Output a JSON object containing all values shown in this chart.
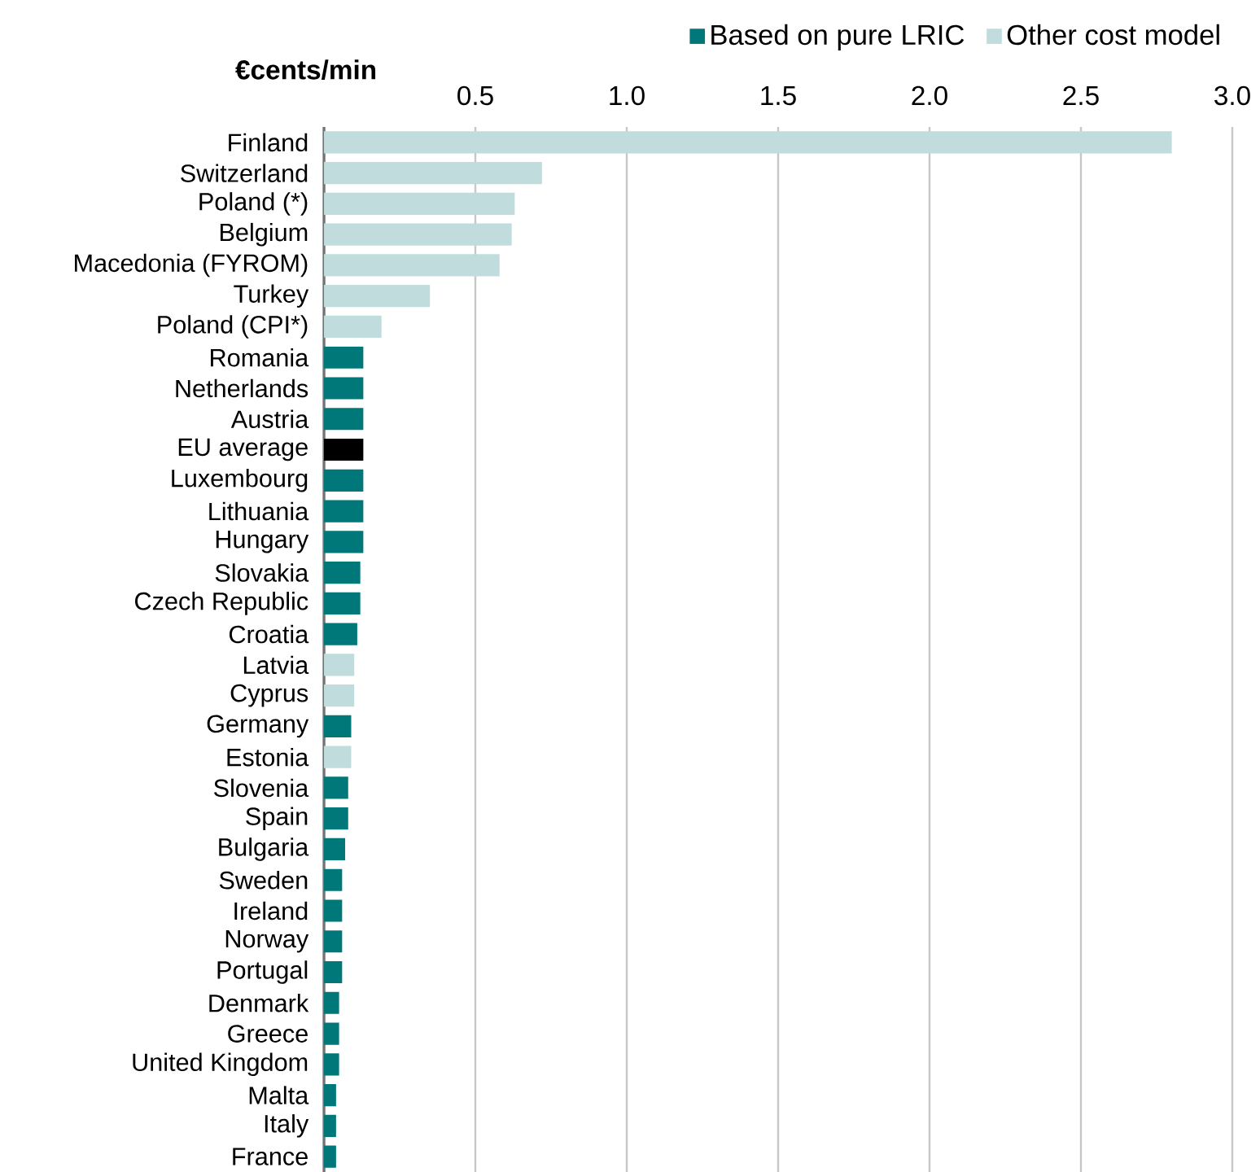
{
  "chart_data": {
    "type": "bar",
    "orientation": "horizontal",
    "xlabel": "€cents/min",
    "categories": [
      "Finland",
      "Switzerland",
      "Poland (*)",
      "Belgium",
      "Macedonia (FYROM)",
      "Turkey",
      "Poland (CPI*)",
      "Romania",
      "Netherlands",
      "Austria",
      "EU average",
      "Luxembourg",
      "Lithuania",
      "Hungary",
      "Slovakia",
      "Czech Republic",
      "Croatia",
      "Latvia",
      "Cyprus",
      "Germany",
      "Estonia",
      "Slovenia",
      "Spain",
      "Bulgaria",
      "Sweden",
      "Ireland",
      "Norway",
      "Portugal",
      "Denmark",
      "Greece",
      "United Kingdom",
      "Malta",
      "Italy",
      "France"
    ],
    "series": [
      {
        "name": "Based on pure LRIC",
        "color": "#00787a",
        "values": [
          null,
          null,
          null,
          null,
          null,
          null,
          null,
          0.13,
          0.13,
          0.13,
          null,
          0.13,
          0.13,
          0.13,
          0.12,
          0.12,
          0.11,
          null,
          null,
          0.09,
          null,
          0.08,
          0.08,
          0.07,
          0.06,
          0.06,
          0.06,
          0.06,
          0.05,
          0.05,
          0.05,
          0.04,
          0.04,
          0.04
        ]
      },
      {
        "name": "Other cost model",
        "color": "#c0dcdc",
        "values": [
          2.8,
          0.72,
          0.63,
          0.62,
          0.58,
          0.35,
          0.19,
          null,
          null,
          null,
          null,
          null,
          null,
          null,
          null,
          null,
          null,
          0.1,
          0.1,
          null,
          0.09,
          null,
          null,
          null,
          null,
          null,
          null,
          null,
          null,
          null,
          null,
          null,
          null,
          null
        ]
      },
      {
        "color": "#000000",
        "values": [
          null,
          null,
          null,
          null,
          null,
          null,
          null,
          null,
          null,
          null,
          0.13,
          null,
          null,
          null,
          null,
          null,
          null,
          null,
          null,
          null,
          null,
          null,
          null,
          null,
          null,
          null,
          null,
          null,
          null,
          null,
          null,
          null,
          null,
          null
        ]
      }
    ],
    "xlim": [
      0,
      3.0
    ],
    "xticks": [
      0.5,
      {
        "value": 1.0,
        "label": "1.0"
      },
      1.5,
      {
        "value": 2.0,
        "label": "2.0"
      },
      2.5,
      {
        "value": 3.0,
        "label": "3.0"
      }
    ],
    "grid": "x",
    "legend": "top right"
  }
}
